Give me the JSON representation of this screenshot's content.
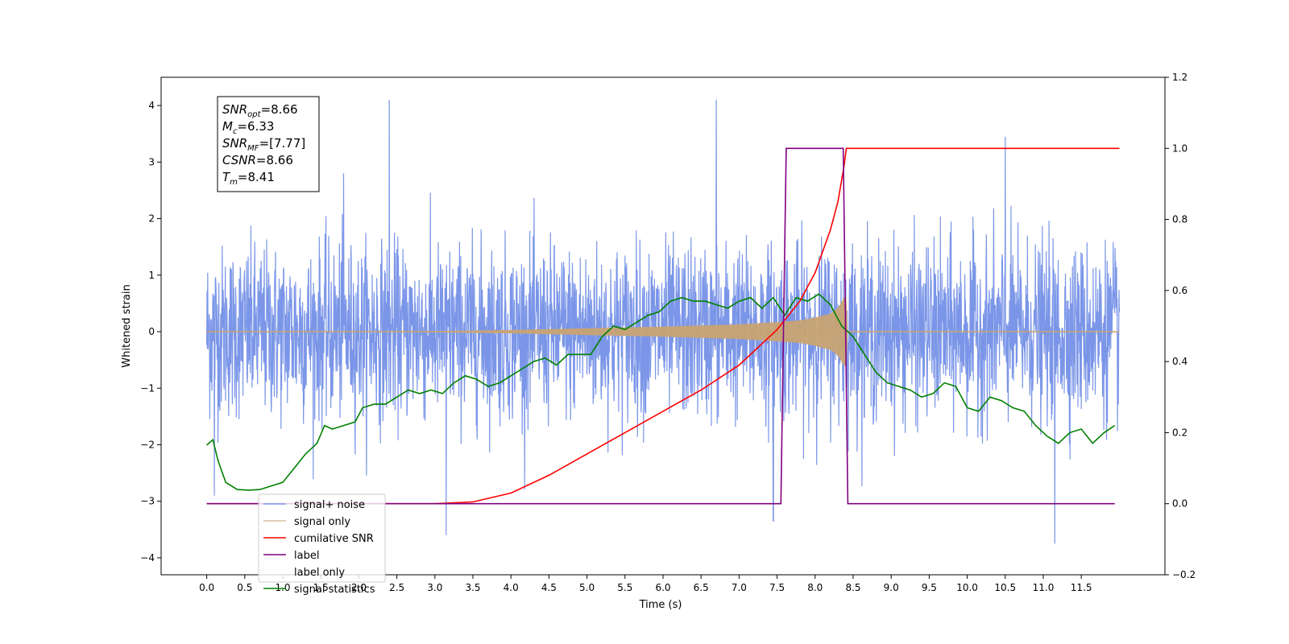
{
  "chart_data": {
    "type": "line",
    "title": "",
    "xlabel": "Time (s)",
    "ylabel": "Whitened strain",
    "y2label": "",
    "xlim": [
      -0.6,
      12.6
    ],
    "ylim": [
      -4.3,
      4.5
    ],
    "y2lim": [
      -0.2,
      1.2
    ],
    "xticks": [
      0.0,
      0.5,
      1.0,
      1.5,
      2.0,
      2.5,
      3.0,
      3.5,
      4.0,
      4.5,
      5.0,
      5.5,
      6.0,
      6.5,
      7.0,
      7.5,
      8.0,
      8.5,
      9.0,
      9.5,
      10.0,
      10.5,
      11.0,
      11.5
    ],
    "xtick_labels": [
      "0.0",
      "0.5",
      "1.0",
      "1.5",
      "2.0",
      "2.5",
      "3.0",
      "3.5",
      "4.0",
      "4.5",
      "5.0",
      "5.5",
      "6.0",
      "6.5",
      "7.0",
      "7.5",
      "8.0",
      "8.5",
      "9.0",
      "9.5",
      "10.0",
      "10.5",
      "11.0",
      "11.5"
    ],
    "yticks": [
      -4,
      -3,
      -2,
      -1,
      0,
      1,
      2,
      3,
      4
    ],
    "ytick_labels": [
      "−4",
      "−3",
      "−2",
      "−1",
      "0",
      "1",
      "2",
      "3",
      "4"
    ],
    "y2ticks": [
      -0.2,
      0.0,
      0.2,
      0.4,
      0.6,
      0.8,
      1.0,
      1.2
    ],
    "y2tick_labels": [
      "−0.2",
      "0.0",
      "0.2",
      "0.4",
      "0.6",
      "0.8",
      "1.0",
      "1.2"
    ],
    "grid": false,
    "legend_position": "lower-left",
    "annotation": {
      "lines": [
        {
          "sym": "SNR",
          "sub": "opt",
          "value": "=8.66"
        },
        {
          "sym": "M",
          "sub": "c",
          "value": "=6.33"
        },
        {
          "sym": "SNR",
          "sub": "MF",
          "value": "=[7.77]"
        },
        {
          "sym": "CSNR",
          "sub": "",
          "value": "=8.66"
        },
        {
          "sym": "T",
          "sub": "m",
          "value": "=8.41"
        }
      ]
    },
    "series": [
      {
        "name": "signal+ noise",
        "axis": "left",
        "color": "#7b96e8",
        "kind": "noise",
        "x_range": [
          0.0,
          12.0
        ],
        "std": 0.75,
        "peaks": [
          [
            2.4,
            4.1
          ],
          [
            6.7,
            4.1
          ],
          [
            10.5,
            3.45
          ],
          [
            3.15,
            -3.6
          ],
          [
            11.15,
            -3.75
          ],
          [
            7.45,
            -3.35
          ],
          [
            0.1,
            -2.9
          ],
          [
            1.8,
            2.8
          ]
        ]
      },
      {
        "name": "signal only",
        "axis": "left",
        "color": "#c8a373",
        "kind": "chirp_envelope",
        "x": [
          0.0,
          2.0,
          3.0,
          4.0,
          5.0,
          6.0,
          6.5,
          7.0,
          7.5,
          7.8,
          8.0,
          8.2,
          8.3,
          8.38,
          8.41,
          8.43,
          12.0
        ],
        "amplitude": [
          0.0,
          0.005,
          0.01,
          0.03,
          0.06,
          0.09,
          0.11,
          0.13,
          0.17,
          0.2,
          0.25,
          0.32,
          0.42,
          0.6,
          0.6,
          0.0,
          0.0
        ]
      },
      {
        "name": "cumilative SNR",
        "axis": "right",
        "color": "#ff0000",
        "x": [
          0.0,
          3.0,
          3.5,
          4.0,
          4.5,
          5.0,
          5.5,
          6.0,
          6.5,
          7.0,
          7.5,
          7.8,
          8.0,
          8.2,
          8.3,
          8.38,
          8.41,
          12.0
        ],
        "values": [
          0.0,
          0.0,
          0.005,
          0.03,
          0.08,
          0.14,
          0.2,
          0.26,
          0.32,
          0.39,
          0.49,
          0.57,
          0.65,
          0.77,
          0.85,
          0.95,
          1.0,
          1.0
        ]
      },
      {
        "name": "label",
        "axis": "right",
        "color": "#800080",
        "x": [
          0.0,
          7.55,
          7.62,
          8.37,
          8.43,
          11.94
        ],
        "values": [
          0.0,
          0.0,
          1.0,
          1.0,
          0.0,
          0.0
        ]
      },
      {
        "name": "label only",
        "axis": "right",
        "color": "#800080",
        "hidden_behind_legend": true,
        "x": [],
        "values": []
      },
      {
        "name": "signal statistics",
        "axis": "right",
        "color": "#008000",
        "x": [
          0.0,
          0.08,
          0.15,
          0.25,
          0.4,
          0.55,
          0.7,
          0.85,
          1.0,
          1.15,
          1.3,
          1.45,
          1.55,
          1.65,
          1.8,
          1.95,
          2.05,
          2.2,
          2.35,
          2.5,
          2.65,
          2.8,
          2.95,
          3.1,
          3.25,
          3.4,
          3.55,
          3.7,
          3.85,
          4.0,
          4.15,
          4.3,
          4.45,
          4.6,
          4.75,
          4.9,
          5.05,
          5.2,
          5.35,
          5.5,
          5.65,
          5.8,
          5.95,
          6.1,
          6.25,
          6.4,
          6.55,
          6.7,
          6.85,
          7.0,
          7.15,
          7.3,
          7.45,
          7.6,
          7.75,
          7.9,
          8.05,
          8.2,
          8.35,
          8.5,
          8.65,
          8.8,
          8.95,
          9.1,
          9.25,
          9.4,
          9.55,
          9.7,
          9.85,
          10.0,
          10.15,
          10.3,
          10.45,
          10.6,
          10.75,
          10.9,
          11.05,
          11.2,
          11.35,
          11.5,
          11.65,
          11.8,
          11.94
        ],
        "values": [
          0.165,
          0.18,
          0.12,
          0.06,
          0.04,
          0.038,
          0.04,
          0.05,
          0.06,
          0.1,
          0.14,
          0.17,
          0.22,
          0.21,
          0.22,
          0.23,
          0.27,
          0.28,
          0.28,
          0.3,
          0.32,
          0.31,
          0.32,
          0.31,
          0.34,
          0.36,
          0.35,
          0.33,
          0.34,
          0.36,
          0.38,
          0.4,
          0.41,
          0.39,
          0.42,
          0.42,
          0.42,
          0.47,
          0.5,
          0.49,
          0.51,
          0.53,
          0.54,
          0.57,
          0.58,
          0.57,
          0.57,
          0.56,
          0.55,
          0.57,
          0.58,
          0.55,
          0.58,
          0.53,
          0.58,
          0.57,
          0.59,
          0.56,
          0.5,
          0.47,
          0.42,
          0.37,
          0.34,
          0.33,
          0.32,
          0.3,
          0.31,
          0.34,
          0.33,
          0.27,
          0.26,
          0.3,
          0.29,
          0.27,
          0.26,
          0.22,
          0.19,
          0.17,
          0.2,
          0.21,
          0.17,
          0.2,
          0.22
        ]
      }
    ]
  }
}
